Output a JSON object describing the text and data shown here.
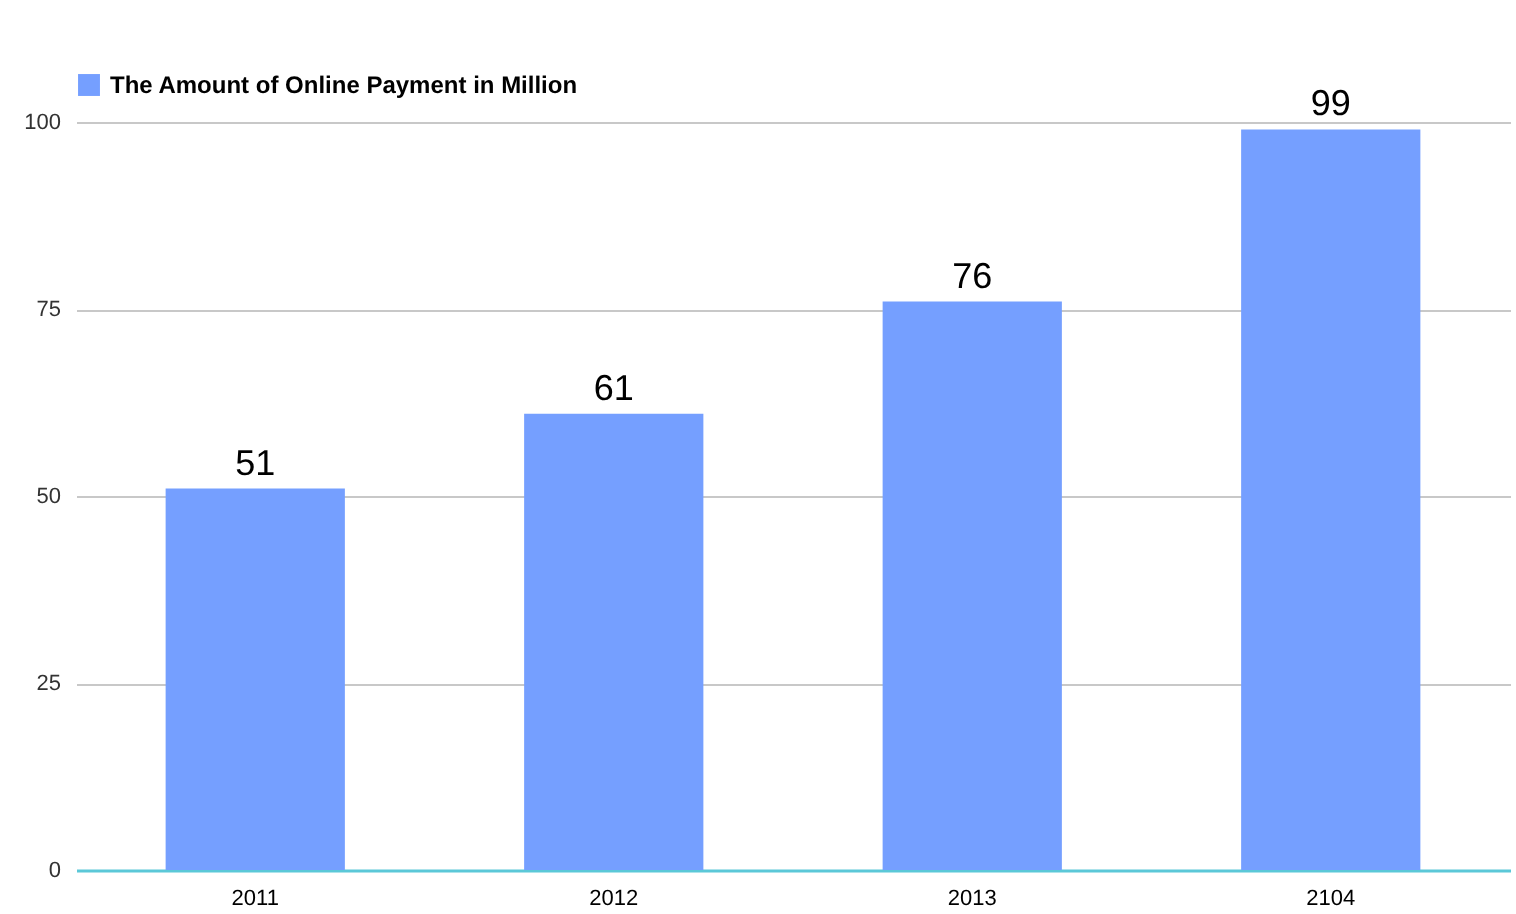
{
  "chart_data": {
    "type": "bar",
    "categories": [
      "2011",
      "2012",
      "2013",
      "2104"
    ],
    "series": [
      {
        "name": "The Amount of Online Payment in Million",
        "color": "#759fff",
        "values": [
          51,
          61,
          76,
          99
        ]
      }
    ],
    "ylim": [
      0,
      100
    ],
    "yticks": [
      0,
      25,
      50,
      75,
      100
    ],
    "grid": "y",
    "legend": "top",
    "data_labels": true
  }
}
